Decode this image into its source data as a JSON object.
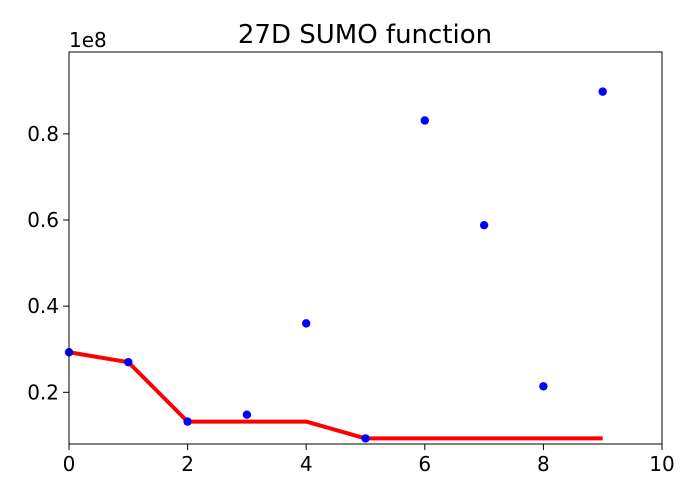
{
  "chart_data": {
    "type": "scatter",
    "title": "27D SUMO function",
    "xlabel": "",
    "ylabel": "",
    "y_offset_label": "1e8",
    "xlim": [
      0,
      10
    ],
    "ylim": [
      0.08,
      0.99
    ],
    "x_ticks": [
      0,
      2,
      4,
      6,
      8,
      10
    ],
    "x_tick_labels": [
      "0",
      "2",
      "4",
      "6",
      "8",
      "10"
    ],
    "y_ticks": [
      0.2,
      0.4,
      0.6,
      0.8
    ],
    "y_tick_labels": [
      "0.2",
      "0.4",
      "0.6",
      "0.8"
    ],
    "grid": false,
    "series": [
      {
        "kind": "scatter",
        "color": "#0000ff",
        "x": [
          0,
          1,
          2,
          3,
          4,
          5,
          6,
          7,
          8,
          9
        ],
        "y": [
          0.293,
          0.27,
          0.132,
          0.148,
          0.36,
          0.093,
          0.831,
          0.588,
          0.214,
          0.898
        ]
      },
      {
        "kind": "line",
        "color": "#ff0000",
        "x": [
          0,
          1,
          2,
          3,
          4,
          5,
          6,
          7,
          8,
          9
        ],
        "y": [
          0.293,
          0.27,
          0.132,
          0.132,
          0.132,
          0.093,
          0.093,
          0.093,
          0.093,
          0.093
        ]
      }
    ]
  }
}
